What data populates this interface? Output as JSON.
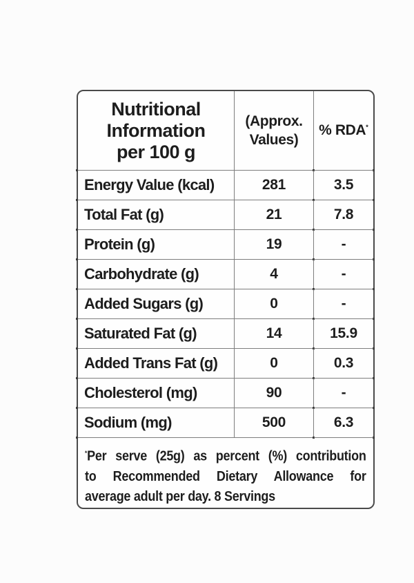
{
  "header": {
    "title_lines": [
      "Nutritional",
      "Information",
      "per 100 g"
    ],
    "values_col_lines": [
      "(Approx.",
      "Values)"
    ],
    "rda_col": "% RDA",
    "rda_marker": "*"
  },
  "rows": [
    {
      "label": "Energy Value (kcal)",
      "value": "281",
      "rda": "3.5"
    },
    {
      "label": "Total Fat (g)",
      "value": "21",
      "rda": "7.8"
    },
    {
      "label": "Protein (g)",
      "value": "19",
      "rda": "-"
    },
    {
      "label": "Carbohydrate (g)",
      "value": "4",
      "rda": "-"
    },
    {
      "label": "Added Sugars (g)",
      "value": "0",
      "rda": "-"
    },
    {
      "label": "Saturated Fat (g)",
      "value": "14",
      "rda": "15.9"
    },
    {
      "label": "Added Trans Fat (g)",
      "value": "0",
      "rda": "0.3"
    },
    {
      "label": "Cholesterol (mg)",
      "value": "90",
      "rda": "-"
    },
    {
      "label": "Sodium (mg)",
      "value": "500",
      "rda": "6.3"
    }
  ],
  "footnote": {
    "marker": "*",
    "lines": [
      "Per serve (25g) as percent (%) contribution",
      "to Recommended Dietary Allowance for",
      "average adult per day. 8 Servings"
    ]
  },
  "colors": {
    "text": "#1d1d1d",
    "border_outer": "#4a4a4a",
    "border_inner": "#7d7d7d",
    "bg": "#fcfcfc",
    "table_bg": "#fefefe"
  }
}
